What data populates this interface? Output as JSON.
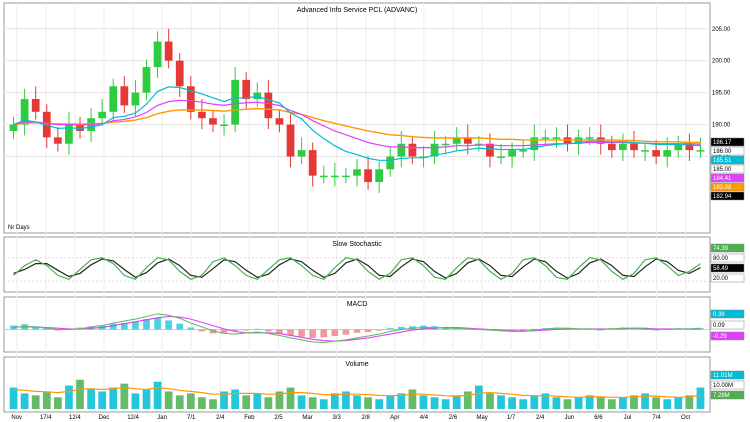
{
  "chart_data": {
    "type": "candlestick",
    "title": "Advanced Info Service PCL (ADVANC)",
    "corner_label": "Nr Days",
    "x_tick_labels": [
      "Nov",
      "17/4",
      "12/4",
      "Dec",
      "12/4",
      "Jan",
      "7/1",
      "2/4",
      "Feb",
      "2/5",
      "Mar",
      "3/3",
      "2/8",
      "Apr",
      "4/4",
      "2/6",
      "May",
      "1/7",
      "2/4",
      "Jun",
      "6/6",
      "Jul",
      "7/4",
      "Oct"
    ],
    "price": {
      "y_tick_labels": [
        "205.00",
        "200.00",
        "195.00",
        "190.00",
        "185.00"
      ],
      "ylim": [
        176,
        207
      ],
      "close": [
        190,
        194,
        192,
        188,
        187,
        190,
        189,
        191,
        192,
        196,
        193,
        195,
        199,
        203,
        200,
        196,
        192,
        191,
        190,
        190,
        197,
        194,
        195,
        191,
        190,
        185,
        186,
        182,
        182,
        182,
        182,
        183,
        181,
        183,
        185,
        187,
        185,
        185,
        187,
        187,
        188,
        187,
        187,
        185,
        185,
        186,
        186,
        188,
        188,
        188,
        187,
        188,
        188,
        187,
        186,
        187,
        186,
        186,
        185,
        186,
        187,
        186,
        186
      ],
      "ma_a": [
        190.0,
        190.7,
        190.4,
        189.9,
        189.4,
        189.5,
        189.4,
        189.6,
        190.0,
        191.1,
        191.3,
        191.8,
        193.2,
        195.2,
        195.9,
        195.8,
        195.3,
        194.8,
        194.2,
        193.6,
        194.2,
        194.2,
        194.4,
        193.9,
        193.4,
        191.8,
        190.9,
        189.1,
        187.8,
        186.7,
        185.8,
        185.3,
        184.7,
        184.4,
        184.4,
        184.7,
        184.8,
        184.8,
        185.2,
        185.5,
        185.9,
        186.1,
        186.3,
        186.2,
        186.1,
        186.1,
        186.1,
        186.4,
        186.7,
        186.9,
        187.0,
        187.2,
        187.4,
        187.4,
        187.3,
        187.3,
        187.2,
        187.1,
        186.9,
        186.9,
        186.9,
        186.8,
        186.7
      ],
      "ma_b": [
        190.0,
        190.4,
        190.4,
        190.2,
        190.0,
        190.0,
        189.9,
        190.0,
        190.1,
        190.6,
        190.8,
        191.2,
        191.9,
        193.0,
        193.6,
        193.8,
        193.7,
        193.5,
        193.2,
        193.0,
        193.3,
        193.4,
        193.5,
        193.3,
        193.0,
        192.2,
        191.6,
        190.6,
        189.8,
        189.0,
        188.4,
        187.8,
        187.2,
        186.8,
        186.5,
        186.5,
        186.4,
        186.4,
        186.4,
        186.5,
        186.7,
        186.7,
        186.8,
        186.8,
        186.7,
        186.7,
        186.7,
        186.8,
        186.9,
        187.0,
        187.0,
        187.1,
        187.2,
        187.2,
        187.2,
        187.2,
        187.1,
        187.1,
        187.0,
        187.0,
        187.0,
        187.0,
        186.9
      ],
      "ma_c": [
        190.0,
        190.2,
        190.3,
        190.2,
        190.1,
        190.1,
        190.1,
        190.1,
        190.2,
        190.4,
        190.5,
        190.7,
        191.1,
        191.7,
        192.1,
        192.3,
        192.3,
        192.3,
        192.2,
        192.1,
        192.3,
        192.4,
        192.5,
        192.4,
        192.3,
        191.9,
        191.6,
        191.1,
        190.6,
        190.2,
        189.8,
        189.4,
        189.0,
        188.7,
        188.4,
        188.3,
        188.1,
        188.0,
        187.9,
        187.9,
        187.9,
        187.9,
        187.9,
        187.8,
        187.7,
        187.7,
        187.6,
        187.6,
        187.6,
        187.6,
        187.6,
        187.6,
        187.6,
        187.6,
        187.6,
        187.5,
        187.5,
        187.4,
        187.3,
        187.3,
        187.3,
        187.2,
        187.2
      ],
      "right_flags": [
        {
          "text": "186.17",
          "bg": "#000000",
          "fg": "#ffffff"
        },
        {
          "text": "186.00",
          "bg": "#ffffff",
          "fg": "#000000"
        },
        {
          "text": "185.51",
          "bg": "#00bcd4",
          "fg": "#ffffff"
        },
        {
          "text": "185.00",
          "bg": "#ffffff",
          "fg": "#000000"
        },
        {
          "text": "184.41",
          "bg": "#e040fb",
          "fg": "#ffffff"
        },
        {
          "text": "183.98",
          "bg": "#ff9800",
          "fg": "#ffffff"
        },
        {
          "text": "182.94",
          "bg": "#000000",
          "fg": "#ffffff"
        }
      ]
    },
    "stochastic": {
      "title": "Slow Stochastic",
      "ylim": [
        0,
        100
      ],
      "k": [
        35,
        60,
        75,
        60,
        35,
        25,
        50,
        75,
        80,
        65,
        35,
        25,
        55,
        80,
        75,
        45,
        25,
        35,
        70,
        80,
        60,
        35,
        25,
        50,
        75,
        80,
        60,
        35,
        25,
        55,
        80,
        75,
        45,
        25,
        40,
        75,
        80,
        60,
        30,
        25,
        55,
        80,
        75,
        45,
        25,
        40,
        75,
        80,
        60,
        30,
        25,
        55,
        80,
        75,
        45,
        25,
        40,
        75,
        80,
        60,
        35,
        45,
        65
      ],
      "d": [
        40,
        50,
        65,
        65,
        48,
        32,
        40,
        62,
        77,
        72,
        50,
        30,
        42,
        67,
        77,
        60,
        35,
        30,
        52,
        75,
        70,
        48,
        30,
        38,
        62,
        77,
        70,
        48,
        30,
        40,
        67,
        77,
        60,
        35,
        32,
        57,
        77,
        70,
        45,
        28,
        40,
        67,
        77,
        60,
        35,
        32,
        57,
        77,
        70,
        45,
        28,
        40,
        67,
        77,
        60,
        35,
        32,
        57,
        77,
        70,
        48,
        40,
        55
      ],
      "right_flags": [
        {
          "text": "74.39",
          "bg": "#4caf50",
          "fg": "#ffffff"
        },
        {
          "text": "80.00",
          "bg": "#ffffff",
          "fg": "#000000"
        },
        {
          "text": "58.49",
          "bg": "#000000",
          "fg": "#ffffff"
        },
        {
          "text": "20.00",
          "bg": "#ffffff",
          "fg": "#000000"
        }
      ]
    },
    "macd": {
      "title": "MACD",
      "ylim": [
        -3,
        3
      ],
      "hist": [
        0.6,
        0.8,
        0.5,
        0.2,
        -0.1,
        0.1,
        0.3,
        0.5,
        0.6,
        0.9,
        1.0,
        1.2,
        1.6,
        1.8,
        1.4,
        0.9,
        0.3,
        -0.3,
        -0.6,
        -0.5,
        -0.2,
        -0.1,
        0.1,
        -0.3,
        -0.6,
        -0.9,
        -1.1,
        -1.3,
        -1.2,
        -1.0,
        -0.8,
        -0.5,
        -0.4,
        -0.1,
        0.2,
        0.4,
        0.5,
        0.6,
        0.5,
        0.4,
        0.3,
        0.2,
        0.1,
        0.0,
        -0.2,
        -0.3,
        -0.2,
        0.1,
        0.2,
        0.3,
        0.2,
        0.1,
        0.1,
        0.0,
        0.2,
        0.3,
        0.2,
        0.1,
        0.0,
        0.1,
        0.2,
        0.1,
        0.2
      ],
      "line": [
        0.3,
        0.5,
        0.4,
        0.2,
        0.0,
        0.0,
        0.1,
        0.4,
        0.6,
        1.0,
        1.3,
        1.6,
        2.0,
        2.4,
        2.2,
        1.7,
        1.0,
        0.4,
        -0.2,
        -0.6,
        -0.7,
        -0.5,
        -0.4,
        -0.6,
        -0.9,
        -1.3,
        -1.6,
        -1.9,
        -2.0,
        -1.8,
        -1.6,
        -1.3,
        -1.0,
        -0.7,
        -0.3,
        0.0,
        0.2,
        0.3,
        0.3,
        0.2,
        0.2,
        0.1,
        0.0,
        -0.1,
        -0.2,
        -0.3,
        -0.3,
        -0.1,
        0.1,
        0.2,
        0.2,
        0.1,
        0.1,
        0.0,
        0.1,
        0.2,
        0.2,
        0.1,
        0.0,
        0.0,
        0.1,
        0.1,
        0.2
      ],
      "signal": [
        0.4,
        0.4,
        0.4,
        0.3,
        0.2,
        0.1,
        0.1,
        0.2,
        0.3,
        0.6,
        0.9,
        1.2,
        1.5,
        1.8,
        2.0,
        1.9,
        1.6,
        1.1,
        0.6,
        0.1,
        -0.3,
        -0.5,
        -0.5,
        -0.5,
        -0.6,
        -0.9,
        -1.2,
        -1.5,
        -1.7,
        -1.8,
        -1.7,
        -1.5,
        -1.3,
        -1.0,
        -0.7,
        -0.4,
        -0.1,
        0.1,
        0.2,
        0.3,
        0.3,
        0.2,
        0.1,
        0.0,
        -0.1,
        -0.2,
        -0.2,
        -0.2,
        -0.1,
        0.0,
        0.1,
        0.1,
        0.1,
        0.1,
        0.1,
        0.1,
        0.2,
        0.2,
        0.1,
        0.1,
        0.1,
        0.1,
        0.1
      ],
      "right_flags": [
        {
          "text": "0.38",
          "bg": "#00bcd4",
          "fg": "#ffffff"
        },
        {
          "text": "0.09",
          "bg": "#ffffff",
          "fg": "#000000"
        },
        {
          "text": "-0.29",
          "bg": "#e040fb",
          "fg": "#ffffff"
        }
      ]
    },
    "volume": {
      "title": "Volume",
      "ylim": [
        0,
        100
      ],
      "bars": [
        55,
        40,
        35,
        45,
        30,
        60,
        75,
        50,
        45,
        55,
        65,
        40,
        50,
        70,
        45,
        35,
        40,
        30,
        25,
        45,
        50,
        35,
        40,
        30,
        45,
        55,
        35,
        30,
        25,
        40,
        45,
        35,
        30,
        25,
        35,
        40,
        50,
        35,
        30,
        25,
        35,
        45,
        60,
        40,
        35,
        30,
        25,
        35,
        40,
        30,
        25,
        30,
        35,
        30,
        25,
        30,
        35,
        40,
        30,
        25,
        30,
        35,
        55
      ],
      "ma": [
        50,
        48,
        45,
        44,
        42,
        45,
        50,
        52,
        50,
        52,
        55,
        52,
        50,
        55,
        52,
        48,
        45,
        42,
        38,
        38,
        40,
        40,
        40,
        38,
        38,
        42,
        42,
        40,
        37,
        37,
        38,
        38,
        37,
        35,
        34,
        35,
        38,
        38,
        36,
        34,
        33,
        35,
        40,
        42,
        40,
        38,
        35,
        34,
        34,
        33,
        31,
        30,
        31,
        31,
        30,
        30,
        31,
        33,
        33,
        31,
        30,
        31,
        35
      ],
      "right_flags": [
        {
          "text": "11.01M",
          "bg": "#00bcd4",
          "fg": "#ffffff"
        },
        {
          "text": "10.00M",
          "bg": "#ffffff",
          "fg": "#000000"
        },
        {
          "text": "7.28M",
          "bg": "#4caf50",
          "fg": "#ffffff"
        }
      ]
    }
  }
}
